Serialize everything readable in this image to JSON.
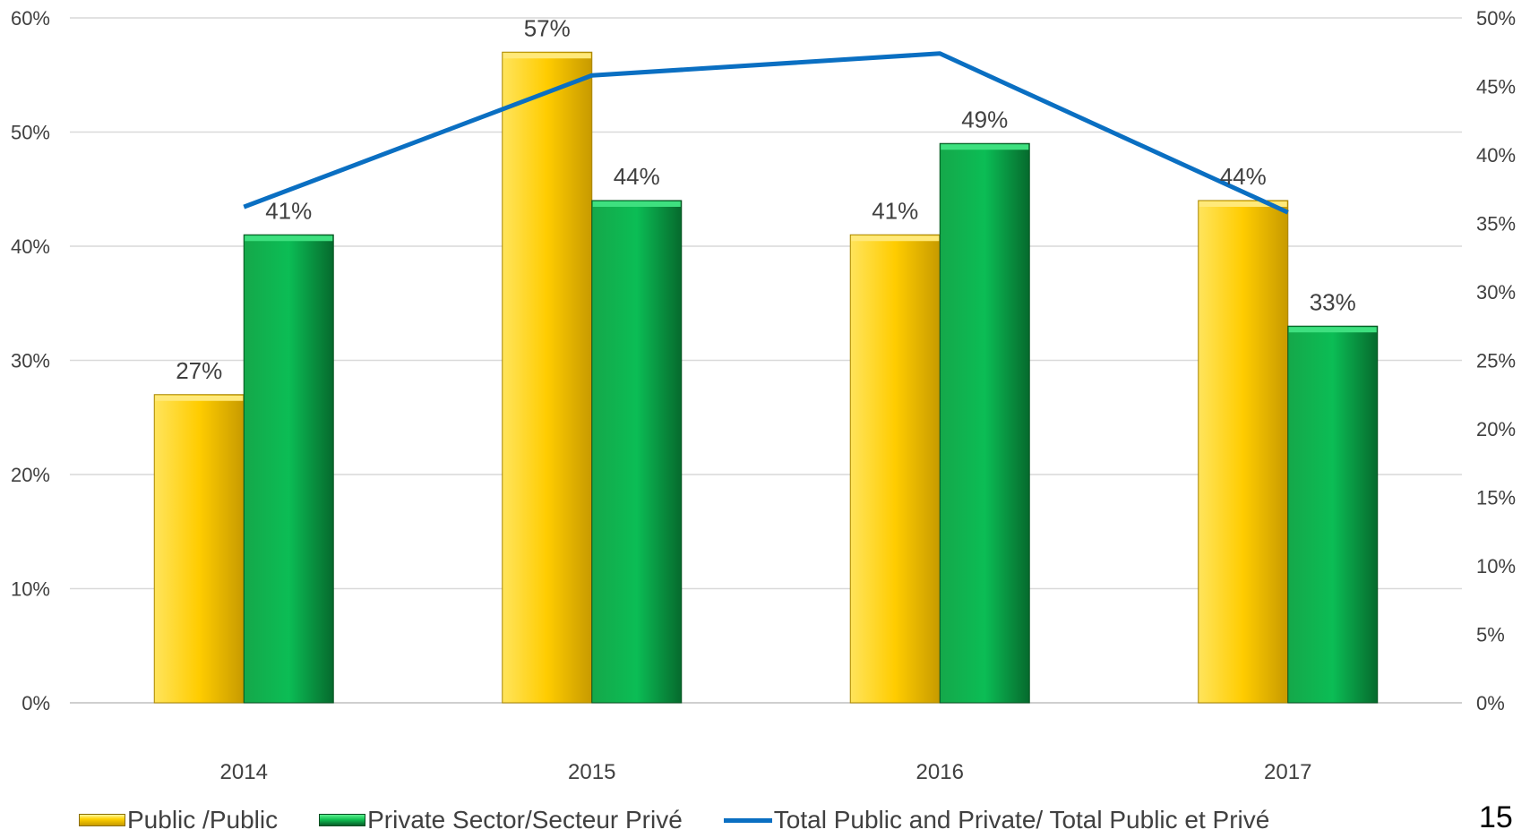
{
  "chart_data": {
    "type": "bar",
    "categories": [
      "2014",
      "2015",
      "2016",
      "2017"
    ],
    "series": [
      {
        "name": "Public /Public",
        "type": "bar",
        "axis": "left",
        "values": [
          27,
          57,
          41,
          44
        ],
        "labels": [
          "27%",
          "57%",
          "41%",
          "44%"
        ],
        "color": "#ffcc00"
      },
      {
        "name": "Private Sector/Secteur Privé",
        "type": "bar",
        "axis": "left",
        "values": [
          41,
          44,
          49,
          33
        ],
        "labels": [
          "41%",
          "44%",
          "49%",
          "33%"
        ],
        "color": "#0bbd55"
      },
      {
        "name": "Total Public and Private/ Total Public et Privé",
        "type": "line",
        "axis": "right",
        "values": [
          36.2,
          45.8,
          47.4,
          35.8
        ],
        "color": "#0a6fc2"
      }
    ],
    "y_left": {
      "range": [
        0,
        60
      ],
      "ticks": [
        "0%",
        "10%",
        "20%",
        "30%",
        "40%",
        "50%",
        "60%"
      ]
    },
    "y_right": {
      "range": [
        0,
        50
      ],
      "ticks": [
        "0%",
        "5%",
        "10%",
        "15%",
        "20%",
        "25%",
        "30%",
        "35%",
        "40%",
        "45%",
        "50%"
      ]
    },
    "title": "",
    "xlabel": "",
    "ylabel": "",
    "grid": true,
    "legend_position": "bottom"
  },
  "page_number": "15"
}
